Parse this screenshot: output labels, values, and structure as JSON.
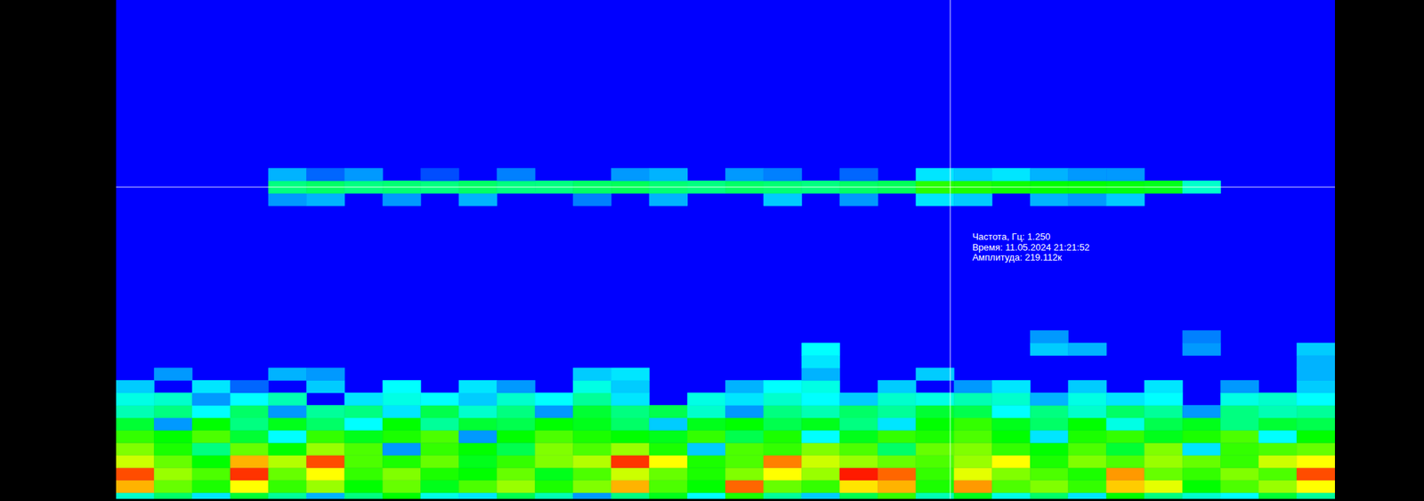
{
  "chart_data": {
    "type": "heatmap",
    "xlim": [
      0,
      32
    ],
    "ylim": [
      0,
      2
    ],
    "tick_labels": false,
    "grid": false,
    "bin_height": 0.05,
    "color_range": [
      0,
      400
    ],
    "rows": [
      {
        "frequency": 0,
        "values": [
          120,
          160,
          90,
          180,
          140,
          70,
          150,
          200,
          110,
          90,
          170,
          130,
          60,
          150,
          190,
          100,
          210,
          140,
          80,
          170,
          220,
          130,
          190,
          110,
          160,
          90,
          200,
          150,
          120,
          100,
          180,
          140
        ]
      },
      {
        "frequency": 0.05,
        "values": [
          330,
          240,
          210,
          300,
          220,
          260,
          200,
          240,
          190,
          230,
          260,
          210,
          250,
          330,
          230,
          200,
          360,
          240,
          220,
          310,
          330,
          210,
          340,
          230,
          250,
          220,
          320,
          290,
          200,
          230,
          260,
          300
        ]
      },
      {
        "frequency": 0.1,
        "values": [
          370,
          260,
          230,
          380,
          240,
          300,
          220,
          250,
          210,
          200,
          240,
          190,
          230,
          280,
          240,
          210,
          250,
          300,
          260,
          390,
          360,
          220,
          290,
          250,
          230,
          210,
          340,
          240,
          220,
          250,
          230,
          370
        ]
      },
      {
        "frequency": 0.15,
        "values": [
          280,
          240,
          200,
          330,
          270,
          370,
          230,
          210,
          240,
          190,
          220,
          250,
          270,
          380,
          300,
          210,
          230,
          350,
          280,
          260,
          240,
          230,
          260,
          300,
          210,
          250,
          230,
          260,
          240,
          220,
          280,
          300
        ]
      },
      {
        "frequency": 0.2,
        "values": [
          250,
          210,
          150,
          240,
          200,
          260,
          230,
          60,
          220,
          200,
          170,
          250,
          230,
          260,
          210,
          80,
          230,
          220,
          250,
          230,
          160,
          240,
          250,
          220,
          200,
          230,
          180,
          250,
          90,
          220,
          230,
          240
        ]
      },
      {
        "frequency": 0.25,
        "values": [
          220,
          200,
          230,
          180,
          100,
          220,
          190,
          210,
          230,
          60,
          200,
          230,
          210,
          200,
          190,
          220,
          170,
          210,
          100,
          190,
          220,
          210,
          230,
          200,
          90,
          210,
          220,
          190,
          210,
          230,
          100,
          200
        ]
      },
      {
        "frequency": 0.3,
        "values": [
          180,
          60,
          200,
          150,
          190,
          160,
          100,
          200,
          140,
          180,
          170,
          200,
          190,
          160,
          80,
          190,
          200,
          170,
          190,
          150,
          90,
          200,
          220,
          190,
          160,
          200,
          110,
          170,
          190,
          150,
          180,
          170
        ]
      },
      {
        "frequency": 0.35,
        "values": [
          130,
          150,
          100,
          160,
          60,
          140,
          150,
          90,
          170,
          120,
          150,
          60,
          180,
          150,
          170,
          120,
          60,
          150,
          130,
          160,
          140,
          180,
          170,
          100,
          150,
          120,
          160,
          140,
          60,
          150,
          130,
          140
        ]
      },
      {
        "frequency": 0.4,
        "values": [
          110,
          120,
          60,
          100,
          130,
          0,
          90,
          110,
          100,
          80,
          120,
          100,
          140,
          90,
          0,
          110,
          90,
          120,
          100,
          80,
          120,
          110,
          130,
          120,
          70,
          110,
          90,
          100,
          0,
          110,
          120,
          100
        ]
      },
      {
        "frequency": 0.45,
        "values": [
          80,
          0,
          90,
          40,
          0,
          80,
          0,
          100,
          0,
          90,
          60,
          0,
          110,
          80,
          0,
          0,
          70,
          100,
          110,
          0,
          80,
          0,
          60,
          90,
          0,
          80,
          0,
          90,
          0,
          60,
          0,
          80
        ]
      },
      {
        "frequency": 0.5,
        "values": [
          0,
          60,
          0,
          0,
          70,
          60,
          0,
          0,
          0,
          0,
          0,
          0,
          80,
          90,
          0,
          0,
          0,
          0,
          70,
          0,
          0,
          80,
          0,
          0,
          0,
          0,
          0,
          0,
          0,
          0,
          0,
          70
        ]
      },
      {
        "frequency": 0.55,
        "values": [
          0,
          0,
          0,
          0,
          0,
          0,
          0,
          0,
          0,
          0,
          0,
          0,
          0,
          0,
          0,
          0,
          0,
          0,
          90,
          0,
          0,
          0,
          0,
          0,
          0,
          0,
          0,
          0,
          0,
          0,
          0,
          70
        ]
      },
      {
        "frequency": 0.6,
        "values": [
          0,
          0,
          0,
          0,
          0,
          0,
          0,
          0,
          0,
          0,
          0,
          0,
          0,
          0,
          0,
          0,
          0,
          0,
          100,
          0,
          0,
          0,
          0,
          0,
          80,
          70,
          0,
          0,
          60,
          0,
          0,
          80
        ]
      },
      {
        "frequency": 0.65,
        "values": [
          0,
          0,
          0,
          0,
          0,
          0,
          0,
          0,
          0,
          0,
          0,
          0,
          0,
          0,
          0,
          0,
          0,
          0,
          0,
          0,
          0,
          0,
          0,
          0,
          60,
          0,
          0,
          0,
          50,
          0,
          0,
          0
        ]
      },
      {
        "frequency": 1.2,
        "values": [
          0,
          0,
          0,
          0,
          60,
          70,
          0,
          60,
          0,
          70,
          0,
          0,
          50,
          0,
          70,
          0,
          0,
          80,
          0,
          60,
          0,
          90,
          80,
          0,
          70,
          60,
          80,
          0,
          0,
          0,
          0,
          0
        ]
      },
      {
        "frequency": 1.25,
        "values": [
          0,
          0,
          0,
          0,
          150,
          160,
          150,
          155,
          150,
          160,
          150,
          150,
          160,
          165,
          155,
          150,
          160,
          155,
          150,
          160,
          165,
          215,
          210,
          205,
          200,
          200,
          195,
          190,
          120,
          0,
          0,
          0
        ]
      },
      {
        "frequency": 1.3,
        "values": [
          0,
          0,
          0,
          0,
          70,
          40,
          60,
          0,
          30,
          0,
          50,
          0,
          0,
          60,
          70,
          0,
          60,
          50,
          0,
          40,
          0,
          90,
          80,
          90,
          70,
          60,
          60,
          0,
          0,
          0,
          0,
          0
        ]
      }
    ],
    "cursor": {
      "x": 21.9,
      "y": 1.25,
      "text": [
        "Частота, Гц: 1.250",
        "Время: 11.05.2024 21:21:52",
        "Амплитуда: 219.112к"
      ]
    }
  }
}
